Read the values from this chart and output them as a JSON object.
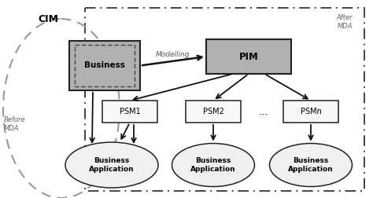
{
  "bg_color": "#ffffff",
  "fig_width": 4.74,
  "fig_height": 2.52,
  "cim_label": "CIM",
  "before_mda_label": "Before\nMDA",
  "after_mda_label": "After\nMDA",
  "modelling_label": "Modelling",
  "business_label": "Business",
  "pim_label": "PIM",
  "psm_labels": [
    "PSM1",
    "PSM2",
    "...",
    "PSMn"
  ],
  "ba_labels": [
    "Business\nApplication",
    "Business\nApplication",
    "Business\nApplication"
  ],
  "box_fill_business": "#b0b0b0",
  "box_fill_pim": "#b0b0b0",
  "box_fill_psm": "#f8f8f8",
  "box_edge": "#222222",
  "ellipse_fill": "#f0f0f0",
  "ellipse_edge": "#222222",
  "arrow_color": "#111111",
  "dashed_rect_color": "#444444",
  "cim_dashed_color": "#999999",
  "inner_dashed_color": "#444444"
}
